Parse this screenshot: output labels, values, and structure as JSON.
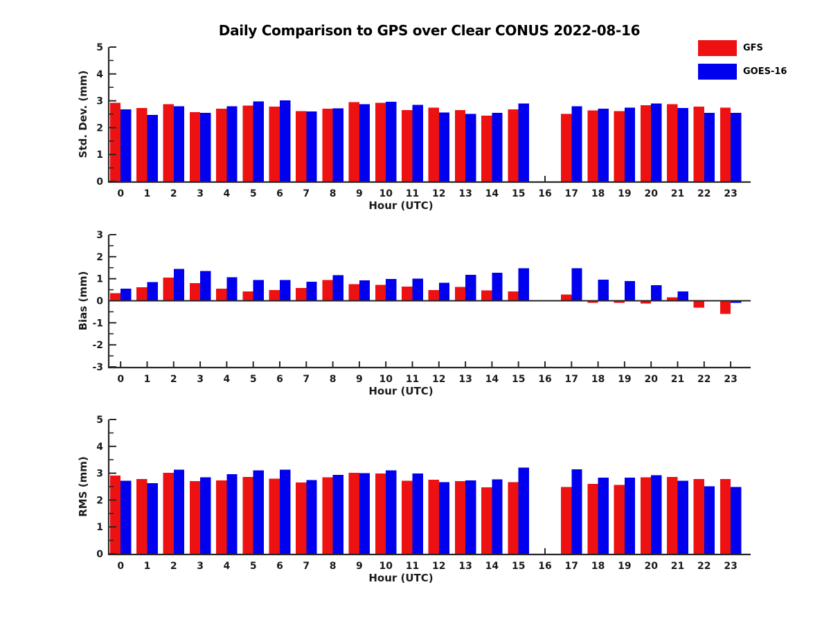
{
  "title": "Daily Comparison to GPS over Clear CONUS 2022-08-16",
  "legend": [
    {
      "label": "GFS",
      "color": "#ee1111"
    },
    {
      "label": "GOES-16",
      "color": "#0000ee"
    }
  ],
  "colors": {
    "gfs_red": "#ee1111",
    "goes_blue": "#0000ee",
    "axis": "#262626",
    "text": "#1a1a1a"
  },
  "chart_data": [
    {
      "type": "bar",
      "name": "std-dev",
      "ylabel": "Std. Dev. (mm)",
      "xlabel": "Hour (UTC)",
      "ylim": [
        0,
        5
      ],
      "yticks": [
        0,
        1,
        2,
        3,
        4,
        5
      ],
      "minor_tick_step": 0.5,
      "grid": false,
      "zero_line": false,
      "categories": [
        "0",
        "1",
        "2",
        "3",
        "4",
        "5",
        "6",
        "7",
        "8",
        "9",
        "10",
        "11",
        "12",
        "13",
        "14",
        "15",
        "16",
        "17",
        "18",
        "19",
        "20",
        "21",
        "22",
        "23"
      ],
      "series": [
        {
          "name": "GFS",
          "color": "#ee1111",
          "values": [
            2.93,
            2.73,
            2.87,
            2.58,
            2.7,
            2.82,
            2.78,
            2.62,
            2.7,
            2.95,
            2.93,
            2.65,
            2.74,
            2.66,
            2.45,
            2.68,
            null,
            2.51,
            2.64,
            2.62,
            2.83,
            2.87,
            2.78,
            2.75
          ]
        },
        {
          "name": "GOES-16",
          "color": "#0000ee",
          "values": [
            2.68,
            2.48,
            2.8,
            2.55,
            2.8,
            2.98,
            3.02,
            2.6,
            2.72,
            2.88,
            2.97,
            2.85,
            2.57,
            2.51,
            2.55,
            2.9,
            null,
            2.79,
            2.7,
            2.75,
            2.9,
            2.73,
            2.55,
            2.55
          ]
        }
      ]
    },
    {
      "type": "bar",
      "name": "bias",
      "ylabel": "Bias (mm)",
      "xlabel": "Hour (UTC)",
      "ylim": [
        -3,
        3
      ],
      "yticks": [
        -3,
        -2,
        -1,
        0,
        1,
        2,
        3
      ],
      "minor_tick_step": 0.5,
      "grid": false,
      "zero_line": true,
      "categories": [
        "0",
        "1",
        "2",
        "3",
        "4",
        "5",
        "6",
        "7",
        "8",
        "9",
        "10",
        "11",
        "12",
        "13",
        "14",
        "15",
        "16",
        "17",
        "18",
        "19",
        "20",
        "21",
        "22",
        "23"
      ],
      "series": [
        {
          "name": "GFS",
          "color": "#ee1111",
          "values": [
            0.35,
            0.62,
            1.05,
            0.8,
            0.55,
            0.43,
            0.48,
            0.58,
            0.95,
            0.76,
            0.72,
            0.65,
            0.48,
            0.63,
            0.47,
            0.43,
            null,
            0.28,
            -0.1,
            -0.1,
            -0.12,
            0.15,
            -0.32,
            -0.6
          ]
        },
        {
          "name": "GOES-16",
          "color": "#0000ee",
          "values": [
            0.55,
            0.85,
            1.45,
            1.35,
            1.07,
            0.95,
            0.95,
            0.86,
            1.16,
            0.93,
            0.99,
            1.0,
            0.82,
            1.18,
            1.27,
            1.47,
            null,
            1.47,
            0.96,
            0.89,
            0.7,
            0.42,
            0.0,
            -0.1
          ]
        }
      ]
    },
    {
      "type": "bar",
      "name": "rms",
      "ylabel": "RMS (mm)",
      "xlabel": "Hour (UTC)",
      "ylim": [
        0,
        5
      ],
      "yticks": [
        0,
        1,
        2,
        3,
        4,
        5
      ],
      "minor_tick_step": 0.5,
      "grid": false,
      "zero_line": false,
      "categories": [
        "0",
        "1",
        "2",
        "3",
        "4",
        "5",
        "6",
        "7",
        "8",
        "9",
        "10",
        "11",
        "12",
        "13",
        "14",
        "15",
        "16",
        "17",
        "18",
        "19",
        "20",
        "21",
        "22",
        "23"
      ],
      "series": [
        {
          "name": "GFS",
          "color": "#ee1111",
          "values": [
            2.91,
            2.78,
            3.02,
            2.7,
            2.73,
            2.86,
            2.8,
            2.66,
            2.85,
            3.02,
            2.99,
            2.72,
            2.76,
            2.7,
            2.47,
            2.67,
            null,
            2.49,
            2.6,
            2.57,
            2.85,
            2.86,
            2.78,
            2.78
          ]
        },
        {
          "name": "GOES-16",
          "color": "#0000ee",
          "values": [
            2.72,
            2.63,
            3.13,
            2.85,
            2.97,
            3.1,
            3.13,
            2.74,
            2.94,
            3.0,
            3.1,
            2.99,
            2.67,
            2.73,
            2.77,
            3.21,
            null,
            3.14,
            2.84,
            2.84,
            2.92,
            2.72,
            2.51,
            2.49
          ]
        }
      ]
    }
  ]
}
